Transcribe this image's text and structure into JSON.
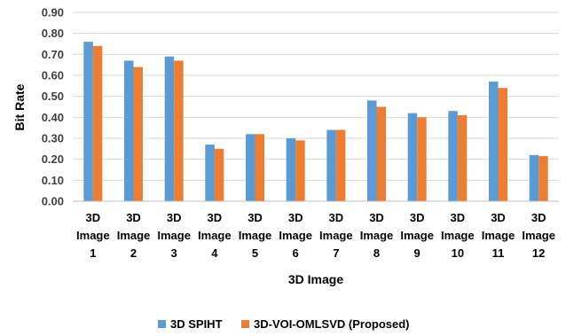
{
  "chart_data": {
    "type": "bar",
    "categories": [
      [
        "3D",
        "Image",
        "1"
      ],
      [
        "3D",
        "Image",
        "2"
      ],
      [
        "3D",
        "Image",
        "3"
      ],
      [
        "3D",
        "Image",
        "4"
      ],
      [
        "3D",
        "Image",
        "5"
      ],
      [
        "3D",
        "Image",
        "6"
      ],
      [
        "3D",
        "Image",
        "7"
      ],
      [
        "3D",
        "Image",
        "8"
      ],
      [
        "3D",
        "Image",
        "9"
      ],
      [
        "3D",
        "Image",
        "10"
      ],
      [
        "3D",
        "Image",
        "11"
      ],
      [
        "3D",
        "Image",
        "12"
      ]
    ],
    "series": [
      {
        "name": "3D SPIHT",
        "color": "#5B9BD5",
        "values": [
          0.76,
          0.67,
          0.69,
          0.27,
          0.32,
          0.3,
          0.34,
          0.48,
          0.42,
          0.43,
          0.57,
          0.22
        ]
      },
      {
        "name": "3D-VOI-OMLSVD (Proposed)",
        "color": "#ED7D31",
        "values": [
          0.74,
          0.64,
          0.67,
          0.25,
          0.32,
          0.29,
          0.34,
          0.45,
          0.4,
          0.41,
          0.54,
          0.215
        ]
      }
    ],
    "xlabel": "3D Image",
    "ylabel": "Bit Rate",
    "ylim": [
      0,
      0.9
    ],
    "ytick_step": 0.1,
    "ytick_labels": [
      "0.00",
      "0.10",
      "0.20",
      "0.30",
      "0.40",
      "0.50",
      "0.60",
      "0.70",
      "0.80",
      "0.90"
    ],
    "grid": true,
    "legend_position": "bottom"
  }
}
